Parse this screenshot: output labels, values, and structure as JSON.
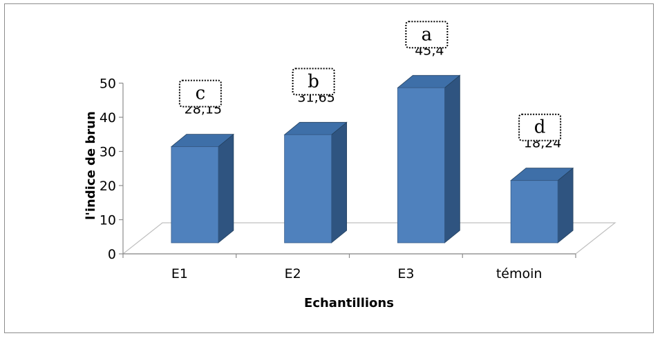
{
  "chart_data": {
    "type": "bar",
    "style": "3d-column",
    "categories": [
      "E1",
      "E2",
      "E3",
      "témoin"
    ],
    "values": [
      28.15,
      31.65,
      45.4,
      18.24
    ],
    "value_labels": [
      "28,15",
      "31,65",
      "45,4",
      "18,24"
    ],
    "significance_letters": [
      "c",
      "b",
      "a",
      "d"
    ],
    "xlabel": "Echantillions",
    "ylabel": "l'indice de brun",
    "ylim": [
      0,
      50
    ],
    "yticks": [
      "0",
      "10",
      "20",
      "30",
      "40",
      "50"
    ],
    "grid": false,
    "legend": "none",
    "colors": {
      "bar_front": "#4f81bd",
      "bar_top": "#3e6fa8",
      "bar_side": "#2f5480",
      "floor": "#ffffff",
      "floor_edge": "#bfbfbf"
    }
  }
}
